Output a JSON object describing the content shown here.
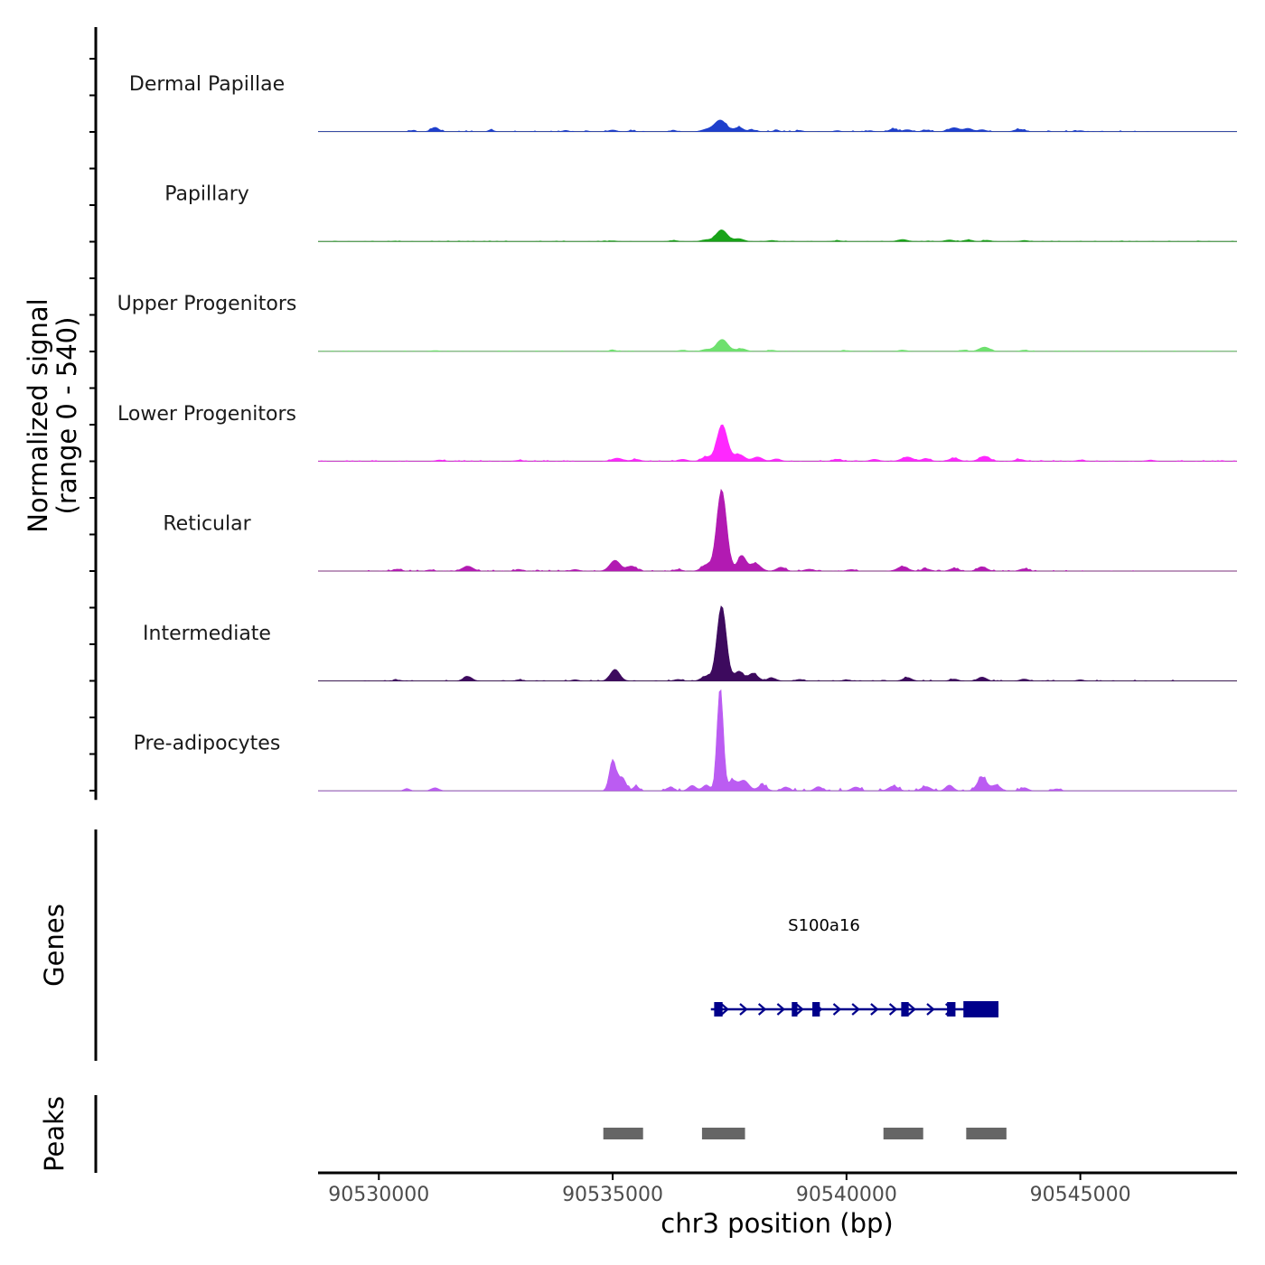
{
  "chart_data": {
    "type": "area",
    "title": "",
    "ylabel_line1": "Normalized signal",
    "ylabel_line2": "(range 0 - 540)",
    "ylim": [
      0,
      540
    ],
    "xlabel": "chr3 position (bp)",
    "xlim": [
      90528700,
      90548350
    ],
    "xticks": [
      90530000,
      90535000,
      90540000,
      90545000
    ],
    "xtick_labels": [
      "90530000",
      "90535000",
      "90540000",
      "90545000"
    ],
    "series": [
      {
        "name": "Dermal Papillae",
        "color": "#1e3fcc",
        "baseline": 0,
        "noise": 6,
        "noise_extent": [
          90530500,
          90546800
        ],
        "peaks": [
          [
            90530700,
            6,
            40
          ],
          [
            90531200,
            22,
            80
          ],
          [
            90532400,
            10,
            50
          ],
          [
            90534000,
            6,
            60
          ],
          [
            90535000,
            8,
            80
          ],
          [
            90535400,
            5,
            60
          ],
          [
            90536300,
            6,
            60
          ],
          [
            90537000,
            10,
            100
          ],
          [
            90537300,
            60,
            130
          ],
          [
            90537700,
            22,
            90
          ],
          [
            90538000,
            8,
            80
          ],
          [
            90538500,
            6,
            60
          ],
          [
            90539000,
            6,
            60
          ],
          [
            90539800,
            5,
            60
          ],
          [
            90540500,
            5,
            60
          ],
          [
            90541000,
            14,
            80
          ],
          [
            90541300,
            10,
            80
          ],
          [
            90541700,
            8,
            80
          ],
          [
            90542300,
            20,
            110
          ],
          [
            90542600,
            16,
            90
          ],
          [
            90542900,
            10,
            80
          ],
          [
            90543700,
            12,
            100
          ],
          [
            90545000,
            5,
            60
          ]
        ]
      },
      {
        "name": "Papillary",
        "color": "#18a318",
        "baseline": 0,
        "noise": 3,
        "noise_extent": [
          90528700,
          90548350
        ],
        "peaks": [
          [
            90535000,
            3,
            80
          ],
          [
            90536300,
            5,
            80
          ],
          [
            90537000,
            8,
            100
          ],
          [
            90537330,
            60,
            120
          ],
          [
            90537700,
            14,
            100
          ],
          [
            90538400,
            5,
            80
          ],
          [
            90539800,
            4,
            80
          ],
          [
            90541200,
            10,
            100
          ],
          [
            90542200,
            8,
            90
          ],
          [
            90542600,
            8,
            90
          ],
          [
            90543000,
            6,
            80
          ],
          [
            90543800,
            5,
            80
          ]
        ]
      },
      {
        "name": "Upper Progenitors",
        "color": "#6ee06e",
        "baseline": 0,
        "noise": 3,
        "noise_extent": [
          90528700,
          90548350
        ],
        "peaks": [
          [
            90531200,
            4,
            80
          ],
          [
            90535000,
            6,
            80
          ],
          [
            90536500,
            6,
            80
          ],
          [
            90537000,
            10,
            90
          ],
          [
            90537340,
            62,
            120
          ],
          [
            90537750,
            14,
            100
          ],
          [
            90538400,
            6,
            80
          ],
          [
            90540000,
            4,
            80
          ],
          [
            90541200,
            6,
            90
          ],
          [
            90542500,
            6,
            80
          ],
          [
            90542950,
            22,
            110
          ],
          [
            90543800,
            6,
            80
          ]
        ]
      },
      {
        "name": "Lower Progenitors",
        "color": "#ff28ff",
        "baseline": 0,
        "noise": 5,
        "noise_extent": [
          90528700,
          90548350
        ],
        "peaks": [
          [
            90531300,
            6,
            80
          ],
          [
            90533000,
            5,
            80
          ],
          [
            90535100,
            16,
            110
          ],
          [
            90535500,
            10,
            90
          ],
          [
            90536500,
            10,
            90
          ],
          [
            90537000,
            22,
            100
          ],
          [
            90537340,
            190,
            110
          ],
          [
            90537700,
            35,
            120
          ],
          [
            90538100,
            22,
            100
          ],
          [
            90538500,
            12,
            90
          ],
          [
            90539800,
            10,
            90
          ],
          [
            90540600,
            10,
            90
          ],
          [
            90541300,
            22,
            120
          ],
          [
            90541700,
            14,
            90
          ],
          [
            90542300,
            16,
            100
          ],
          [
            90542950,
            26,
            110
          ],
          [
            90543700,
            10,
            90
          ],
          [
            90545000,
            6,
            80
          ],
          [
            90546500,
            6,
            80
          ]
        ]
      },
      {
        "name": "Reticular",
        "color": "#b21ab2",
        "baseline": 0,
        "noise": 6,
        "noise_extent": [
          90529500,
          90547200
        ],
        "peaks": [
          [
            90530400,
            10,
            80
          ],
          [
            90531100,
            6,
            70
          ],
          [
            90531900,
            26,
            110
          ],
          [
            90533000,
            8,
            80
          ],
          [
            90534200,
            8,
            80
          ],
          [
            90535050,
            56,
            110
          ],
          [
            90535400,
            26,
            100
          ],
          [
            90536400,
            8,
            80
          ],
          [
            90537000,
            32,
            100
          ],
          [
            90537330,
            420,
            105
          ],
          [
            90537760,
            80,
            90
          ],
          [
            90538050,
            40,
            110
          ],
          [
            90538600,
            20,
            90
          ],
          [
            90539200,
            10,
            90
          ],
          [
            90540100,
            8,
            80
          ],
          [
            90541200,
            24,
            110
          ],
          [
            90541700,
            12,
            90
          ],
          [
            90542300,
            14,
            90
          ],
          [
            90542900,
            22,
            100
          ],
          [
            90543800,
            12,
            90
          ]
        ]
      },
      {
        "name": "Intermediate",
        "color": "#3d0a5e",
        "baseline": 0,
        "noise": 5,
        "noise_extent": [
          90529500,
          90547000
        ],
        "peaks": [
          [
            90530400,
            5,
            70
          ],
          [
            90531900,
            24,
            90
          ],
          [
            90533000,
            6,
            70
          ],
          [
            90534200,
            6,
            70
          ],
          [
            90535050,
            60,
            100
          ],
          [
            90536400,
            8,
            80
          ],
          [
            90537000,
            25,
            100
          ],
          [
            90537330,
            390,
            100
          ],
          [
            90537700,
            50,
            90
          ],
          [
            90538000,
            40,
            100
          ],
          [
            90538400,
            16,
            90
          ],
          [
            90539000,
            8,
            80
          ],
          [
            90540000,
            6,
            80
          ],
          [
            90541300,
            18,
            90
          ],
          [
            90542300,
            10,
            80
          ],
          [
            90542900,
            20,
            90
          ],
          [
            90543800,
            10,
            80
          ],
          [
            90545000,
            6,
            70
          ]
        ]
      },
      {
        "name": "Pre-adipocytes",
        "color": "#bb5cf2",
        "baseline": 0,
        "noise": 14,
        "noise_extent": [
          90534900,
          90545000
        ],
        "peaks": [
          [
            90530600,
            12,
            60
          ],
          [
            90531200,
            16,
            80
          ],
          [
            90535000,
            160,
            70
          ],
          [
            90535200,
            70,
            80
          ],
          [
            90535500,
            25,
            60
          ],
          [
            90536200,
            16,
            60
          ],
          [
            90536700,
            28,
            80
          ],
          [
            90537000,
            30,
            80
          ],
          [
            90537300,
            540,
            65
          ],
          [
            90537560,
            50,
            80
          ],
          [
            90537800,
            55,
            110
          ],
          [
            90538200,
            30,
            90
          ],
          [
            90538700,
            20,
            80
          ],
          [
            90539400,
            22,
            80
          ],
          [
            90540200,
            20,
            90
          ],
          [
            90541000,
            25,
            100
          ],
          [
            90541700,
            22,
            100
          ],
          [
            90542200,
            30,
            80
          ],
          [
            90542900,
            70,
            100
          ],
          [
            90543200,
            30,
            90
          ],
          [
            90543800,
            16,
            80
          ],
          [
            90544500,
            10,
            80
          ]
        ]
      }
    ],
    "genes": {
      "label": "Genes",
      "gene_name": "S100a16",
      "start": 90537100,
      "end": 90543250,
      "strand": "+",
      "exons": [
        [
          90537170,
          90537350
        ],
        [
          90538830,
          90538950
        ],
        [
          90539270,
          90539430
        ],
        [
          90541170,
          90541330
        ],
        [
          90542150,
          90542330
        ],
        [
          90542500,
          90543250
        ]
      ]
    },
    "peaks": {
      "label": "Peaks",
      "regions": [
        [
          90534800,
          90535650
        ],
        [
          90536910,
          90537830
        ],
        [
          90540790,
          90541640
        ],
        [
          90542560,
          90543420
        ]
      ]
    }
  },
  "colors": {
    "axis": "#000000",
    "baseline": "#444444",
    "gene": "#00008b",
    "peak_region": "#666666",
    "tick_label": "#4d4d4d"
  }
}
